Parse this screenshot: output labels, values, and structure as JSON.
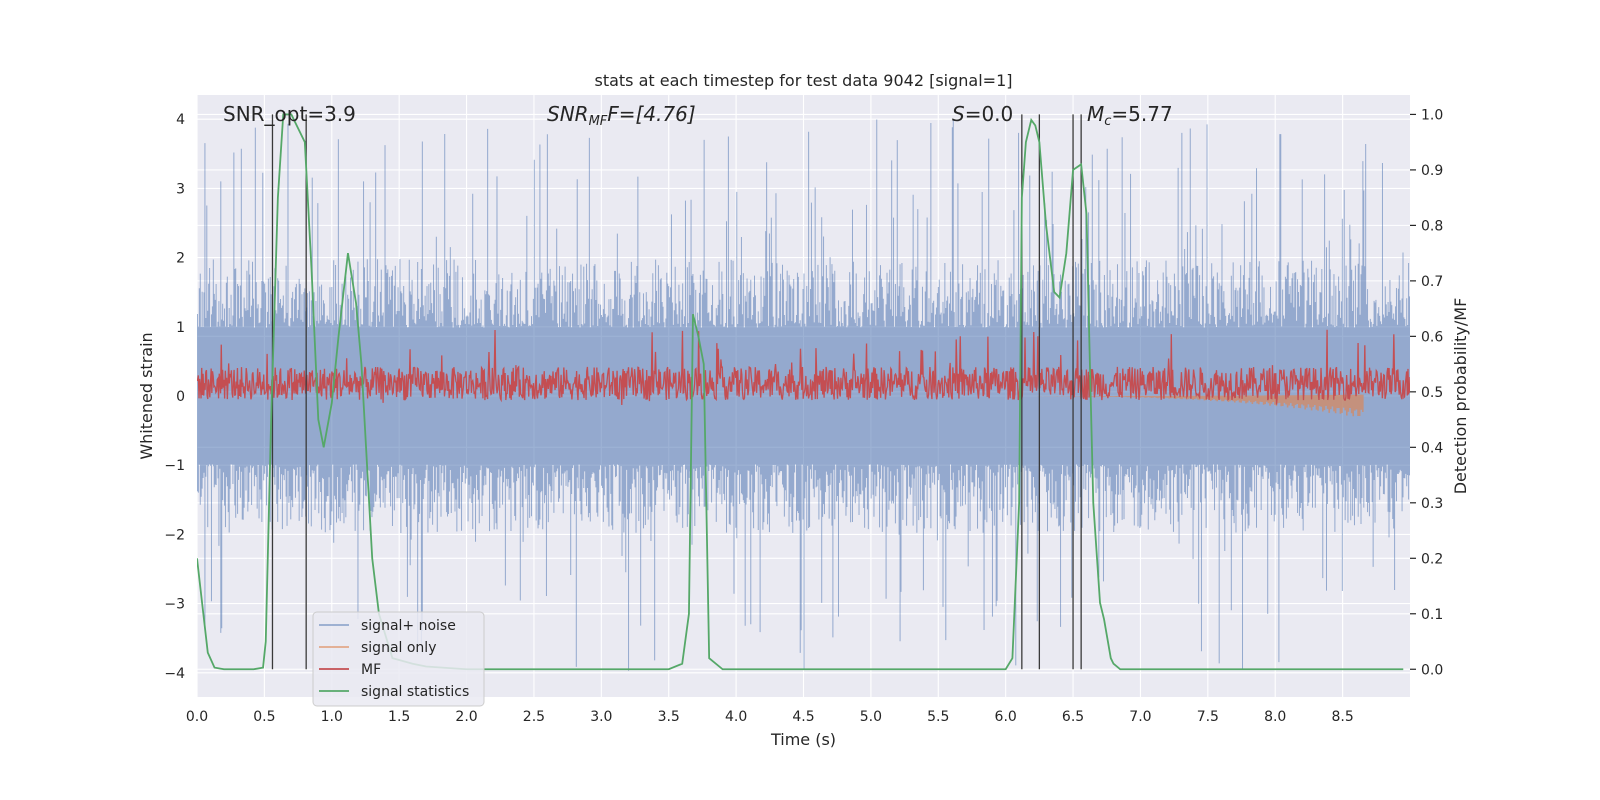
{
  "chart_data": {
    "type": "line",
    "title": "stats at each timestep for test data 9042 [signal=1]",
    "xlabel": "Time (s)",
    "ylabel": "Whitened strain",
    "ylabel_right": "Detection probability/MF",
    "xlim": [
      0,
      9.0
    ],
    "ylim": [
      -4.35,
      4.35
    ],
    "ylim_right": [
      -0.05,
      1.035
    ],
    "x_ticks": [
      0.0,
      0.5,
      1.0,
      1.5,
      2.0,
      2.5,
      3.0,
      3.5,
      4.0,
      4.5,
      5.0,
      5.5,
      6.0,
      6.5,
      7.0,
      7.5,
      8.0,
      8.5
    ],
    "x_tick_labels": [
      "0.0",
      "0.5",
      "1.0",
      "1.5",
      "2.0",
      "2.5",
      "3.0",
      "3.5",
      "4.0",
      "4.5",
      "5.0",
      "5.5",
      "6.0",
      "6.5",
      "7.0",
      "7.5",
      "8.0",
      "8.5"
    ],
    "y_ticks": [
      4,
      3,
      2,
      1,
      0,
      -1,
      -2,
      -3,
      -4
    ],
    "y_tick_labels": [
      "4",
      "3",
      "2",
      "1",
      "0",
      "−1",
      "−2",
      "−3",
      "−4"
    ],
    "y_ticks_right": [
      1.0,
      0.9,
      0.8,
      0.7,
      0.6,
      0.5,
      0.4,
      0.3,
      0.2,
      0.1,
      0.0
    ],
    "y_tick_labels_right": [
      "1.0",
      "0.9",
      "0.8",
      "0.7",
      "0.6",
      "0.5",
      "0.4",
      "0.3",
      "0.2",
      "0.1",
      "0.0"
    ],
    "grid": true,
    "legend_position": "lower-left",
    "annotations": {
      "snr_opt": "SNR_opt=3.9",
      "snr_mf_label": "SNR",
      "snr_mf_sub": "MF",
      "snr_mf_value": "F=[4.76]",
      "s_label": "S",
      "s_value": "=0.0",
      "mc_label": "M",
      "mc_sub": "c",
      "mc_value": "=5.77"
    },
    "vertical_lines": [
      0.56,
      0.81,
      6.12,
      6.25,
      6.5,
      6.56
    ],
    "series": [
      {
        "name": "signal+ noise",
        "color": "#4c72b0",
        "axis": "left",
        "style": "noise",
        "amplitude_typical": 1.8,
        "amplitude_max": 4.0
      },
      {
        "name": "signal only",
        "color": "#dd8452",
        "axis": "left",
        "style": "chirp",
        "t_start": 5.8,
        "t_end": 8.65,
        "min_value": -0.32
      },
      {
        "name": "MF",
        "color": "#c44e52",
        "axis": "right",
        "style": "noise",
        "baseline": 0.515,
        "amplitude_typical": 0.03,
        "amplitude_max": 0.07
      },
      {
        "name": "signal statistics",
        "color": "#55a868",
        "axis": "right",
        "style": "line",
        "x": [
          0.0,
          0.08,
          0.13,
          0.2,
          0.3,
          0.42,
          0.49,
          0.51,
          0.55,
          0.6,
          0.64,
          0.7,
          0.8,
          0.85,
          0.9,
          0.94,
          1.0,
          1.05,
          1.12,
          1.18,
          1.22,
          1.3,
          1.35,
          1.45,
          1.6,
          1.7,
          2.0,
          3.0,
          3.5,
          3.6,
          3.65,
          3.68,
          3.72,
          3.76,
          3.8,
          3.9,
          4.5,
          5.5,
          6.0,
          6.05,
          6.1,
          6.12,
          6.15,
          6.19,
          6.22,
          6.25,
          6.3,
          6.36,
          6.4,
          6.45,
          6.5,
          6.56,
          6.6,
          6.62,
          6.65,
          6.7,
          6.73,
          6.78,
          6.8,
          6.85,
          7.0,
          8.0,
          8.95
        ],
        "y": [
          0.2,
          0.03,
          0.003,
          0.0,
          0.0,
          0.0,
          0.003,
          0.05,
          0.45,
          0.85,
          1.0,
          1.0,
          0.95,
          0.72,
          0.45,
          0.4,
          0.48,
          0.6,
          0.75,
          0.66,
          0.55,
          0.2,
          0.1,
          0.02,
          0.01,
          0.005,
          0.0,
          0.0,
          0.0,
          0.01,
          0.1,
          0.64,
          0.6,
          0.55,
          0.02,
          0.0,
          0.0,
          0.0,
          0.0,
          0.02,
          0.3,
          0.85,
          0.95,
          0.99,
          0.98,
          0.95,
          0.8,
          0.68,
          0.67,
          0.75,
          0.9,
          0.91,
          0.82,
          0.6,
          0.3,
          0.12,
          0.09,
          0.02,
          0.01,
          0.0,
          0.0,
          0.0,
          0.0
        ]
      }
    ]
  }
}
